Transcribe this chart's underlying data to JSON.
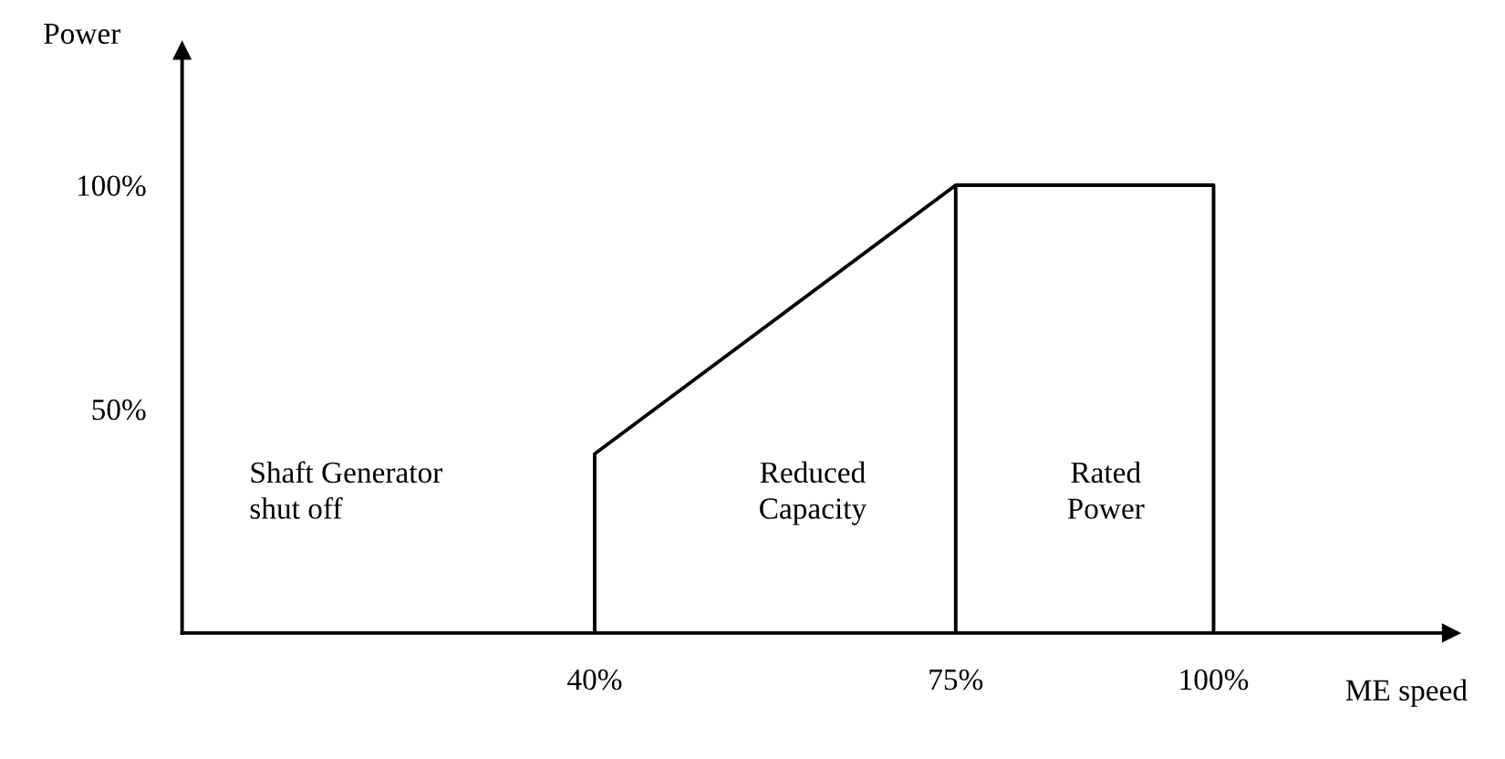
{
  "chart_data": {
    "type": "line",
    "xlabel": "ME speed",
    "ylabel": "Power",
    "series": [
      {
        "color": "#000000",
        "x": [
          40,
          40,
          75,
          75,
          75,
          100,
          100
        ],
        "values": [
          0,
          40,
          100,
          0,
          100,
          100,
          0
        ]
      }
    ],
    "xlim": [
      0,
      123
    ],
    "ylim": [
      0,
      130
    ],
    "xticks": [
      {
        "value": 40,
        "label": "40%"
      },
      {
        "value": 75,
        "label": "75%"
      },
      {
        "value": 100,
        "label": "100%"
      }
    ],
    "yticks": [
      {
        "value": 50,
        "label": "50%"
      },
      {
        "value": 100,
        "label": "100%"
      }
    ],
    "grid": false,
    "legend": false,
    "marker": "none",
    "line_style": "solid",
    "annotations": [
      "Shaft Generator\nshut off",
      "Reduced\nCapacity",
      "Rated\nPower"
    ]
  }
}
